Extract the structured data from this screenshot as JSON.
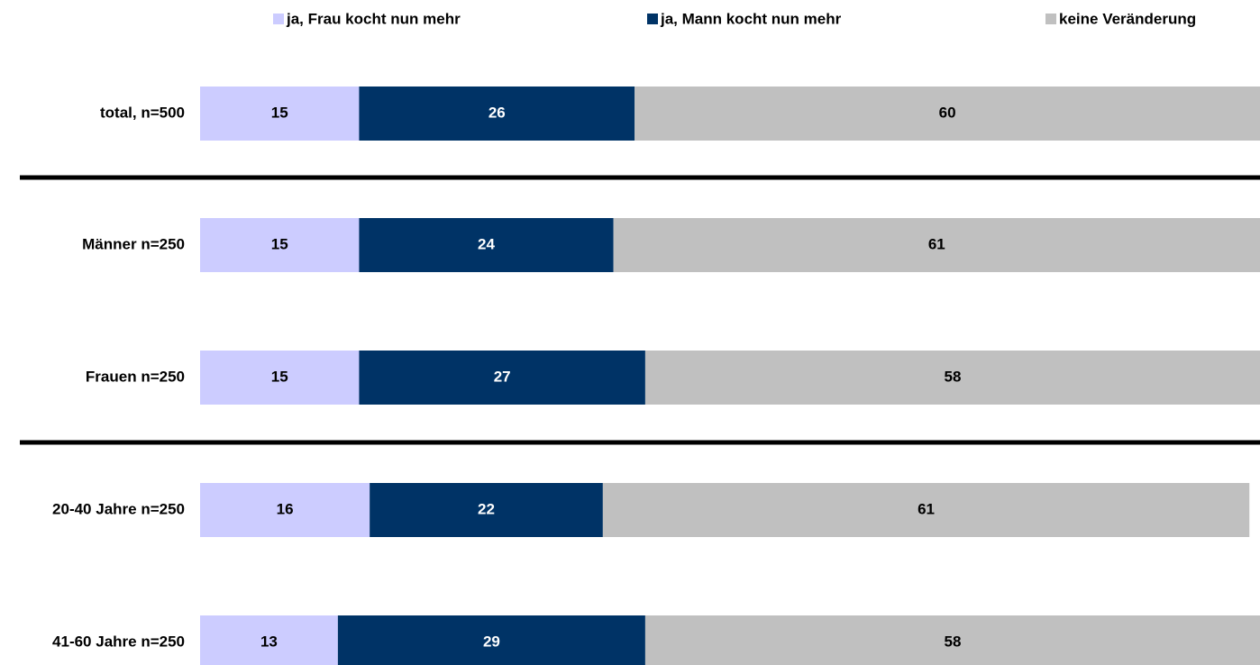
{
  "chart_data": {
    "type": "stacked-bar",
    "orientation": "horizontal",
    "categories": [
      "total, n=500",
      "Männer n=250",
      "Frauen n=250",
      "20-40 Jahre n=250",
      "41-60 Jahre n=250"
    ],
    "series": [
      {
        "name": "ja, Frau kocht nun mehr",
        "color": "#ccccff",
        "label_color": "#000000",
        "values": [
          15,
          15,
          15,
          16,
          13
        ]
      },
      {
        "name": "ja, Mann kocht nun mehr",
        "color": "#003366",
        "label_color": "#ffffff",
        "values": [
          26,
          24,
          27,
          22,
          29
        ]
      },
      {
        "name": "keine Veränderung",
        "color": "#c0c0c0",
        "label_color": "#000000",
        "values": [
          60,
          61,
          58,
          61,
          58
        ]
      }
    ],
    "xlim": [
      0,
      100
    ],
    "legend": "top"
  }
}
